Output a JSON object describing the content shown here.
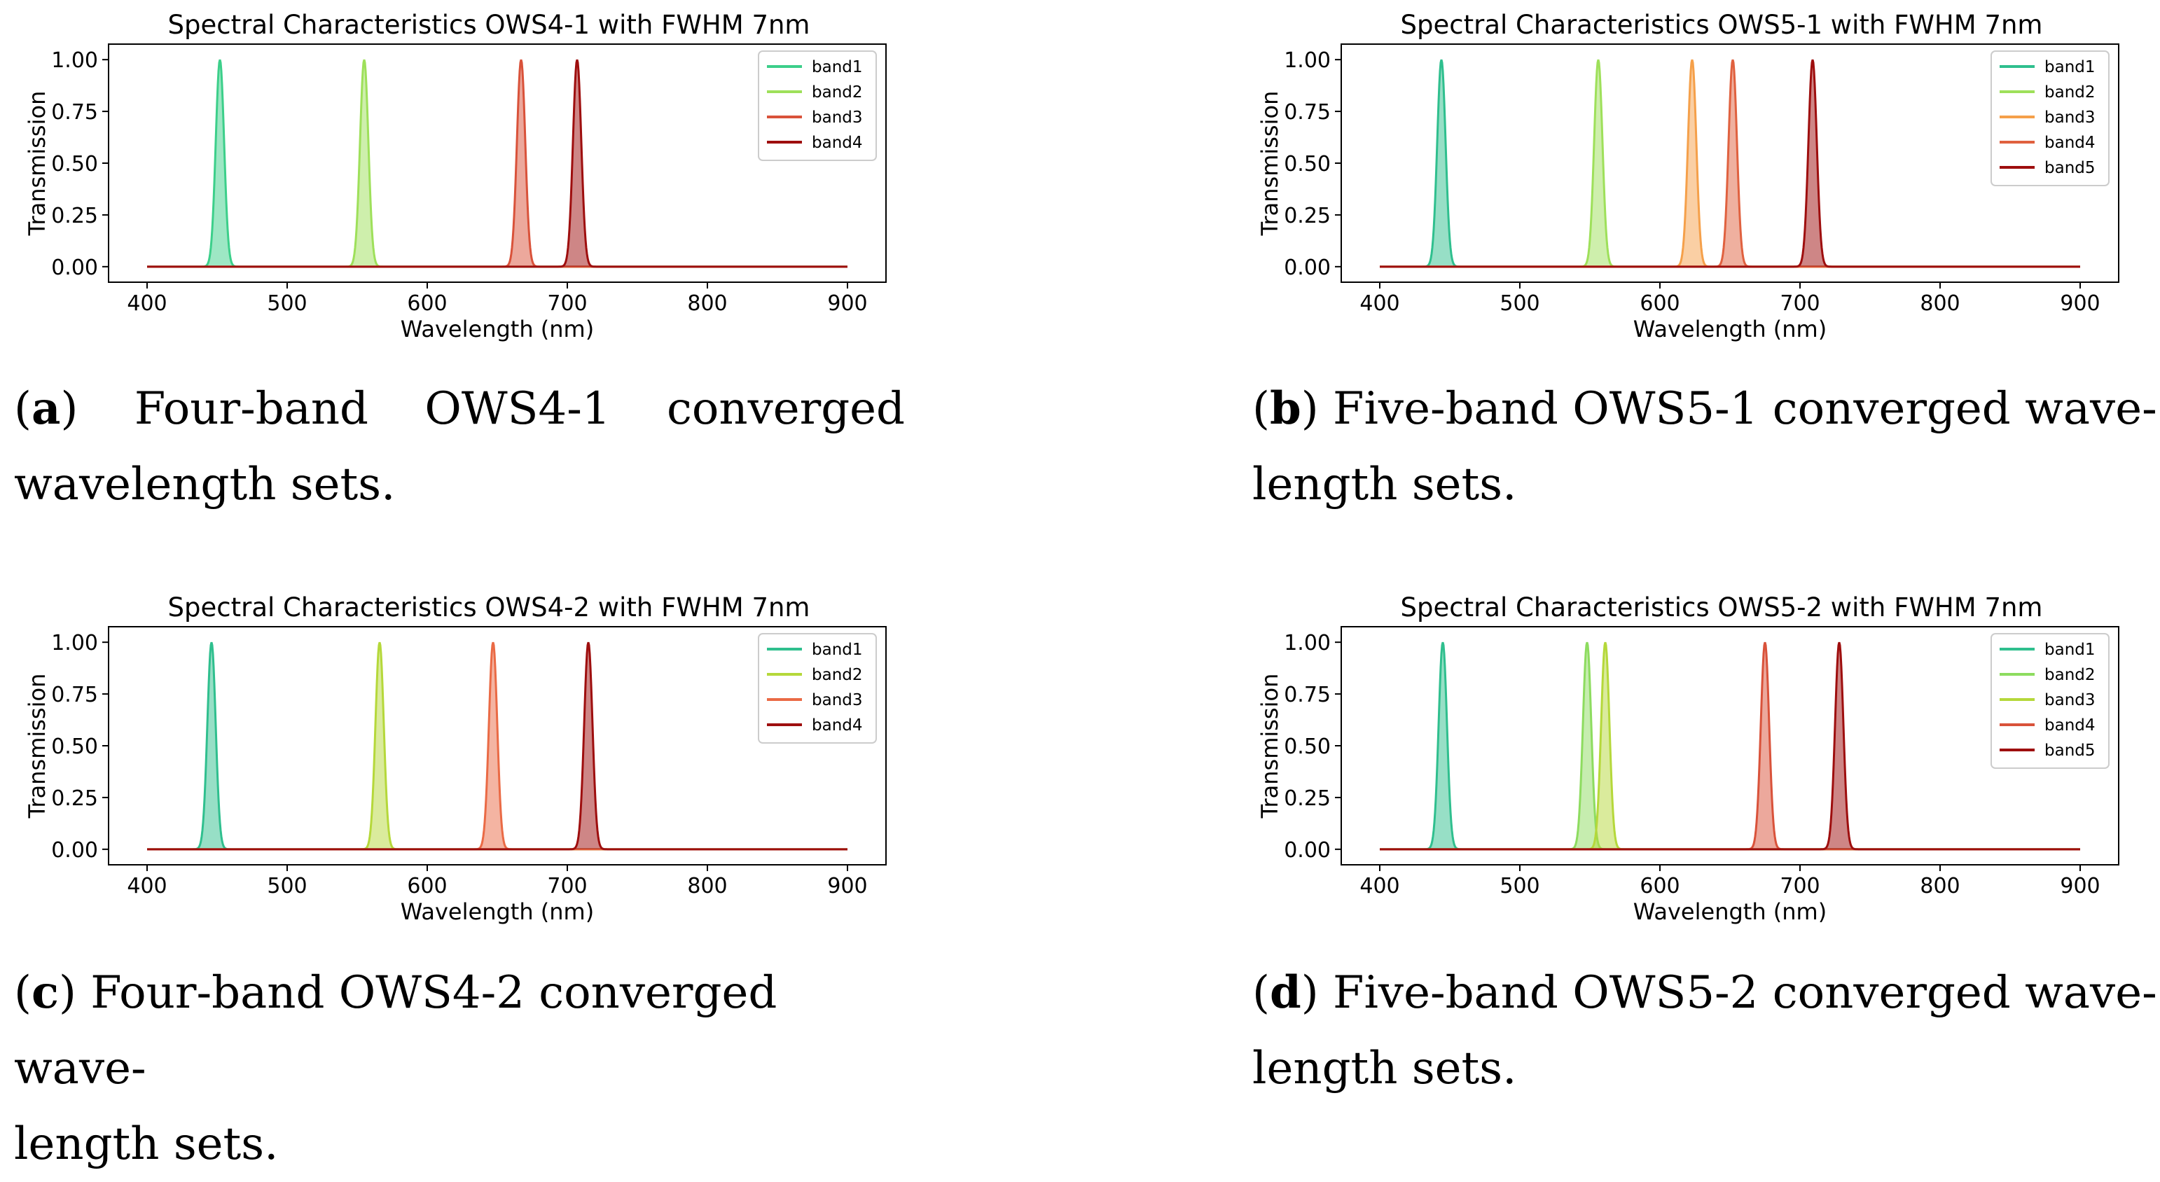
{
  "panels": [
    {
      "id": "a",
      "caption": {
        "letter": "a",
        "line1": "Four-band OWS4-1 converged",
        "line2": "wavelength sets.",
        "justify": true
      },
      "chart_data": {
        "type": "line",
        "title": "Spectral Characteristics OWS4-1 with FWHM 7nm",
        "xlabel": "Wavelength (nm)",
        "ylabel": "Transmission",
        "xlim": [
          400,
          900
        ],
        "ylim": [
          0,
          1
        ],
        "xticks": [
          "400",
          "500",
          "600",
          "700",
          "800",
          "900"
        ],
        "yticks": [
          "0.00",
          "0.25",
          "0.50",
          "0.75",
          "1.00"
        ],
        "fwhm_nm": 7,
        "legend": "top-right",
        "grid": false,
        "series": [
          {
            "name": "band1",
            "center_nm": 452,
            "peak": 1.0,
            "color": "#3ccf8a"
          },
          {
            "name": "band2",
            "center_nm": 555,
            "peak": 1.0,
            "color": "#9ee05a"
          },
          {
            "name": "band3",
            "center_nm": 667,
            "peak": 1.0,
            "color": "#d9523a"
          },
          {
            "name": "band4",
            "center_nm": 707,
            "peak": 1.0,
            "color": "#9e0e0e"
          }
        ]
      }
    },
    {
      "id": "b",
      "caption": {
        "letter": "b",
        "line1": "Five-band OWS5-1 converged wave-",
        "line2": "length sets.",
        "justify": false
      },
      "chart_data": {
        "type": "line",
        "title": "Spectral Characteristics OWS5-1 with FWHM 7nm",
        "xlabel": "Wavelength (nm)",
        "ylabel": "Transmission",
        "xlim": [
          400,
          900
        ],
        "ylim": [
          0,
          1
        ],
        "xticks": [
          "400",
          "500",
          "600",
          "700",
          "800",
          "900"
        ],
        "yticks": [
          "0.00",
          "0.25",
          "0.50",
          "0.75",
          "1.00"
        ],
        "fwhm_nm": 7,
        "legend": "top-right",
        "grid": false,
        "series": [
          {
            "name": "band1",
            "center_nm": 444,
            "peak": 1.0,
            "color": "#2fbf8e"
          },
          {
            "name": "band2",
            "center_nm": 556,
            "peak": 1.0,
            "color": "#9ee05a"
          },
          {
            "name": "band3",
            "center_nm": 623,
            "peak": 1.0,
            "color": "#f5a04a"
          },
          {
            "name": "band4",
            "center_nm": 652,
            "peak": 1.0,
            "color": "#e0613f"
          },
          {
            "name": "band5",
            "center_nm": 709,
            "peak": 1.0,
            "color": "#9e0e0e"
          }
        ]
      }
    },
    {
      "id": "c",
      "caption": {
        "letter": "c",
        "line1": "Four-band OWS4-2 converged wave-",
        "line2": "length sets.",
        "justify": false
      },
      "chart_data": {
        "type": "line",
        "title": "Spectral Characteristics OWS4-2 with FWHM 7nm",
        "xlabel": "Wavelength (nm)",
        "ylabel": "Transmission",
        "xlim": [
          400,
          900
        ],
        "ylim": [
          0,
          1
        ],
        "xticks": [
          "400",
          "500",
          "600",
          "700",
          "800",
          "900"
        ],
        "yticks": [
          "0.00",
          "0.25",
          "0.50",
          "0.75",
          "1.00"
        ],
        "fwhm_nm": 7,
        "legend": "top-right",
        "grid": false,
        "series": [
          {
            "name": "band1",
            "center_nm": 446,
            "peak": 1.0,
            "color": "#2fbf8e"
          },
          {
            "name": "band2",
            "center_nm": 566,
            "peak": 1.0,
            "color": "#b5d83a"
          },
          {
            "name": "band3",
            "center_nm": 647,
            "peak": 1.0,
            "color": "#ea6a45"
          },
          {
            "name": "band4",
            "center_nm": 715,
            "peak": 1.0,
            "color": "#9e0e0e"
          }
        ]
      }
    },
    {
      "id": "d",
      "caption": {
        "letter": "d",
        "line1": "Five-band OWS5-2 converged wave-",
        "line2": "length sets.",
        "justify": false
      },
      "chart_data": {
        "type": "line",
        "title": "Spectral Characteristics OWS5-2 with FWHM 7nm",
        "xlabel": "Wavelength (nm)",
        "ylabel": "Transmission",
        "xlim": [
          400,
          900
        ],
        "ylim": [
          0,
          1
        ],
        "xticks": [
          "400",
          "500",
          "600",
          "700",
          "800",
          "900"
        ],
        "yticks": [
          "0.00",
          "0.25",
          "0.50",
          "0.75",
          "1.00"
        ],
        "fwhm_nm": 7,
        "legend": "top-right",
        "grid": false,
        "series": [
          {
            "name": "band1",
            "center_nm": 445,
            "peak": 1.0,
            "color": "#2fbf8e"
          },
          {
            "name": "band2",
            "center_nm": 548,
            "peak": 1.0,
            "color": "#8ddc5f"
          },
          {
            "name": "band3",
            "center_nm": 561,
            "peak": 1.0,
            "color": "#b5d83a"
          },
          {
            "name": "band4",
            "center_nm": 675,
            "peak": 1.0,
            "color": "#d9523a"
          },
          {
            "name": "band5",
            "center_nm": 728,
            "peak": 1.0,
            "color": "#9e0e0e"
          }
        ]
      }
    }
  ]
}
